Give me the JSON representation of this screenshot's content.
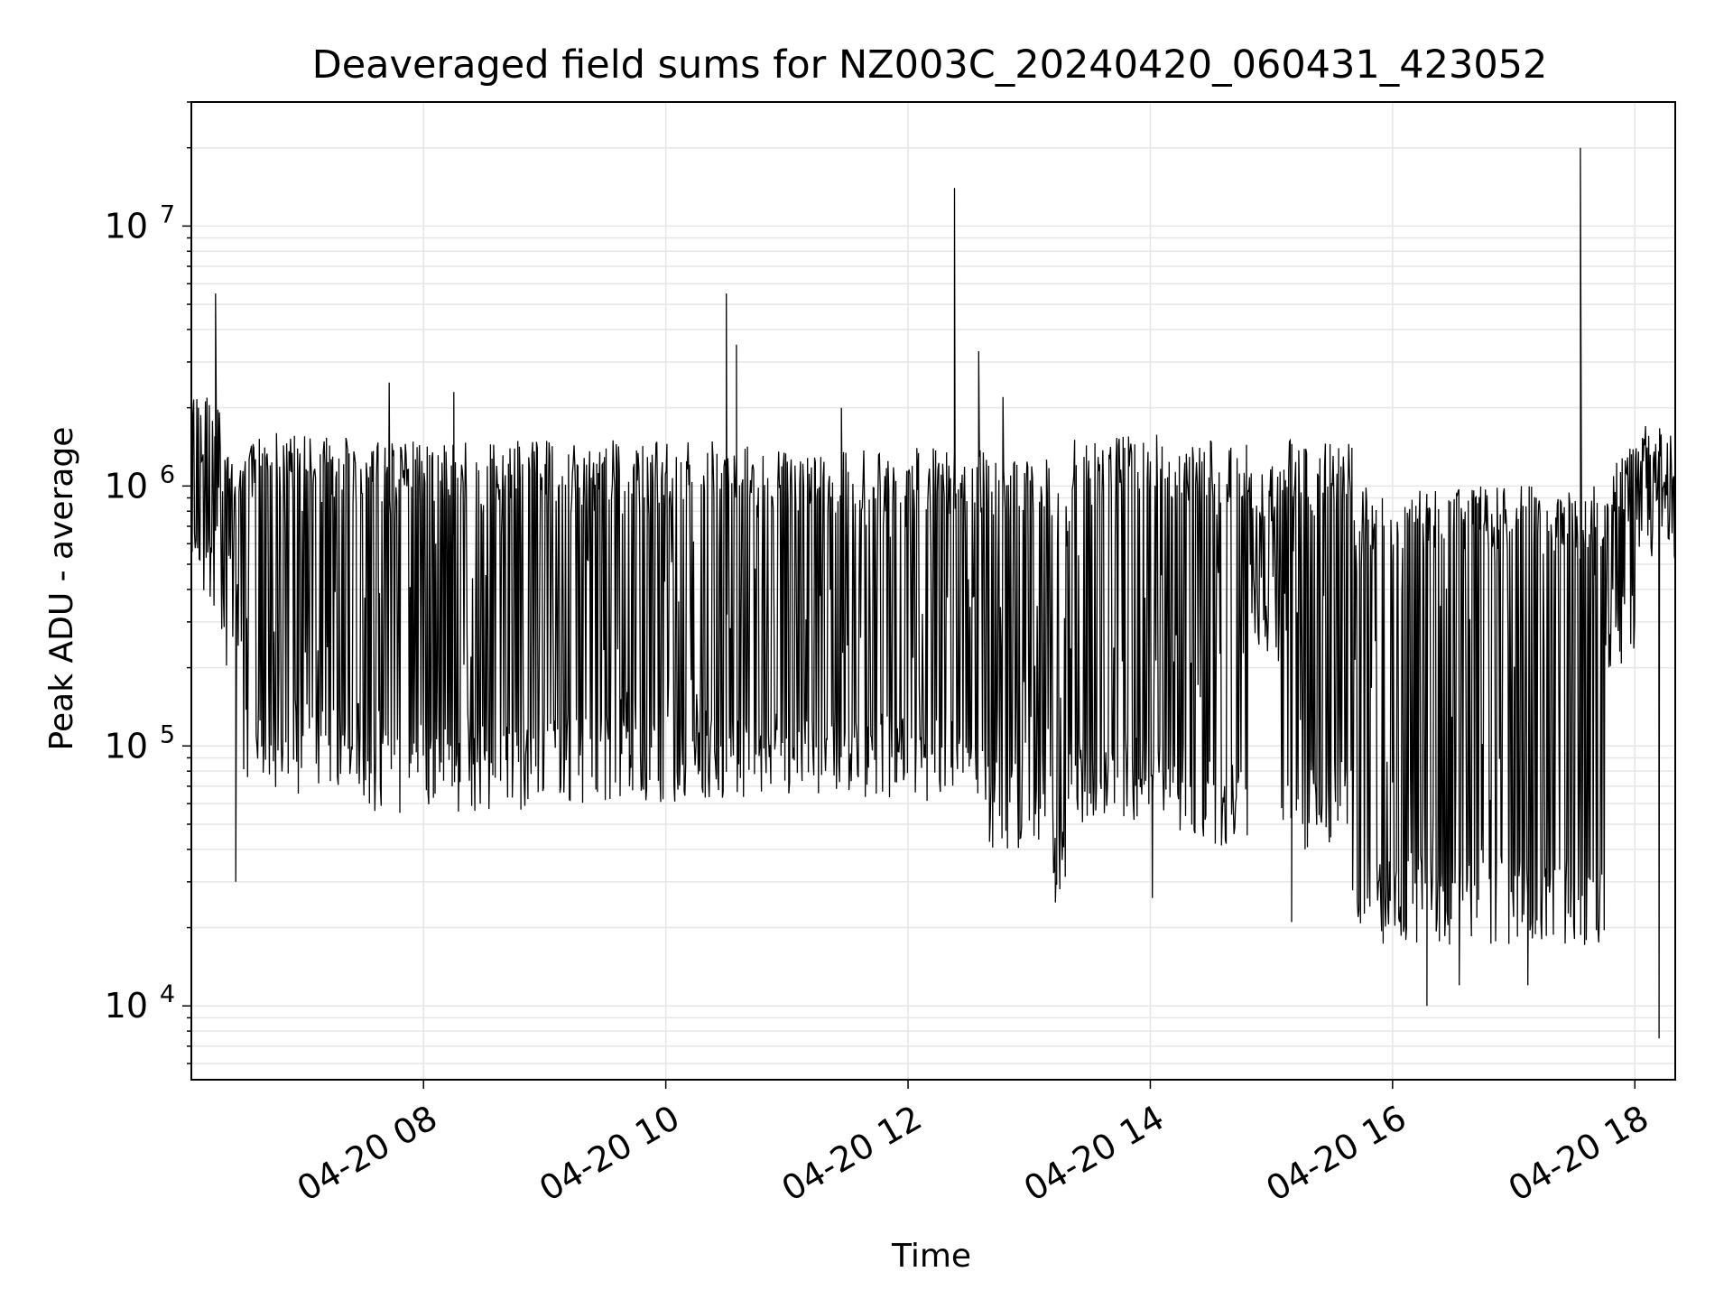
{
  "chart_data": {
    "type": "line",
    "title": "Deaveraged field sums for NZ003C_20240420_060431_423052",
    "xlabel": "Time",
    "ylabel": "Peak ADU - average",
    "yscale": "log",
    "grid": true,
    "line_color": "#000000",
    "grid_color": "#e6e6e6",
    "xlim": [
      "2024-04-20 06:05",
      "2024-04-20 18:20"
    ],
    "ylim": [
      5200,
      30000000
    ],
    "x_ticks": [
      {
        "value": "2024-04-20 08:00",
        "label": "04-20 08"
      },
      {
        "value": "2024-04-20 10:00",
        "label": "04-20 10"
      },
      {
        "value": "2024-04-20 12:00",
        "label": "04-20 12"
      },
      {
        "value": "2024-04-20 14:00",
        "label": "04-20 14"
      },
      {
        "value": "2024-04-20 16:00",
        "label": "04-20 16"
      },
      {
        "value": "2024-04-20 18:00",
        "label": "04-20 18"
      }
    ],
    "y_ticks": [
      {
        "value": 10000,
        "base": "10",
        "exp": "4"
      },
      {
        "value": 100000,
        "base": "10",
        "exp": "5"
      },
      {
        "value": 1000000,
        "base": "10",
        "exp": "6"
      },
      {
        "value": 10000000,
        "base": "10",
        "exp": "7"
      }
    ],
    "envelope": [
      {
        "start": "2024-04-20 06:05",
        "end": "2024-04-20 06:20",
        "high": 2200000,
        "low": 300000
      },
      {
        "start": "2024-04-20 06:20",
        "end": "2024-04-20 06:30",
        "high": 1400000,
        "low": 200000
      },
      {
        "start": "2024-04-20 06:30",
        "end": "2024-04-20 07:30",
        "high": 1600000,
        "low": 65000
      },
      {
        "start": "2024-04-20 07:30",
        "end": "2024-04-20 09:00",
        "high": 1500000,
        "low": 55000
      },
      {
        "start": "2024-04-20 09:00",
        "end": "2024-04-20 11:00",
        "high": 1500000,
        "low": 60000
      },
      {
        "start": "2024-04-20 11:00",
        "end": "2024-04-20 12:40",
        "high": 1400000,
        "low": 60000
      },
      {
        "start": "2024-04-20 12:40",
        "end": "2024-04-20 13:10",
        "high": 1300000,
        "low": 40000
      },
      {
        "start": "2024-04-20 13:10",
        "end": "2024-04-20 13:20",
        "high": 1000000,
        "low": 28000
      },
      {
        "start": "2024-04-20 13:20",
        "end": "2024-04-20 14:10",
        "high": 1600000,
        "low": 50000
      },
      {
        "start": "2024-04-20 14:10",
        "end": "2024-04-20 14:50",
        "high": 1500000,
        "low": 40000
      },
      {
        "start": "2024-04-20 14:50",
        "end": "2024-04-20 15:05",
        "high": 1300000,
        "low": 200000
      },
      {
        "start": "2024-04-20 15:05",
        "end": "2024-04-20 15:40",
        "high": 1500000,
        "low": 40000
      },
      {
        "start": "2024-04-20 15:40",
        "end": "2024-04-20 17:45",
        "high": 1000000,
        "low": 17000
      },
      {
        "start": "2024-04-20 17:45",
        "end": "2024-04-20 18:00",
        "high": 1400000,
        "low": 200000
      },
      {
        "start": "2024-04-20 18:00",
        "end": "2024-04-20 18:15",
        "high": 1700000,
        "low": 500000
      }
    ],
    "spikes": [
      {
        "x": "2024-04-20 06:17",
        "y": 5500000
      },
      {
        "x": "2024-04-20 07:43",
        "y": 2500000
      },
      {
        "x": "2024-04-20 08:15",
        "y": 2300000
      },
      {
        "x": "2024-04-20 10:30",
        "y": 5500000
      },
      {
        "x": "2024-04-20 10:35",
        "y": 3500000
      },
      {
        "x": "2024-04-20 11:27",
        "y": 2000000
      },
      {
        "x": "2024-04-20 12:23",
        "y": 14000000
      },
      {
        "x": "2024-04-20 12:35",
        "y": 3300000
      },
      {
        "x": "2024-04-20 12:47",
        "y": 2200000
      },
      {
        "x": "2024-04-20 17:33",
        "y": 20000000
      }
    ],
    "dips": [
      {
        "x": "2024-04-20 06:27",
        "y": 30000
      },
      {
        "x": "2024-04-20 13:13",
        "y": 25000
      },
      {
        "x": "2024-04-20 14:01",
        "y": 26000
      },
      {
        "x": "2024-04-20 15:10",
        "y": 21000
      },
      {
        "x": "2024-04-20 16:17",
        "y": 10000
      },
      {
        "x": "2024-04-20 16:33",
        "y": 12000
      },
      {
        "x": "2024-04-20 17:07",
        "y": 12000
      },
      {
        "x": "2024-04-20 18:12",
        "y": 7500
      }
    ]
  }
}
